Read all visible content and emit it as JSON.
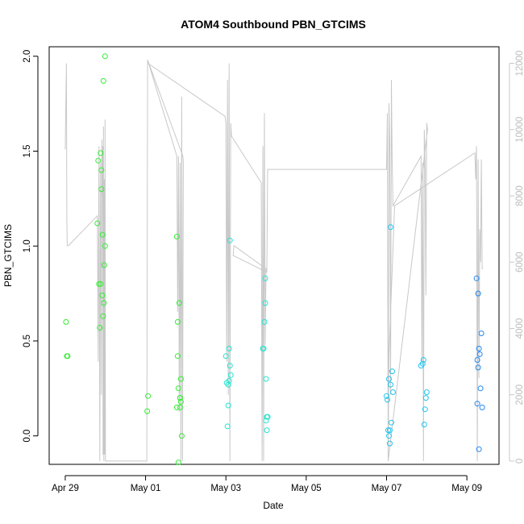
{
  "chart_data": {
    "type": "scatter",
    "title": "ATOM4 Southbound PBN_GTCIMS",
    "xlabel": "Date",
    "ylabel": "PBN_GTCIMS",
    "ylim": [
      -0.15,
      2.05
    ],
    "y_ticks": [
      "0.0",
      "0.5",
      "1.0",
      "1.5",
      "2.0"
    ],
    "x_ticks": [
      "Apr 29",
      "May 01",
      "May 03",
      "May 05",
      "May 07",
      "May 09"
    ],
    "xlim_days": [
      -0.4,
      10.8
    ],
    "right_axis": {
      "ylim": [
        -100,
        12500
      ],
      "ticks": [
        "0",
        "2000",
        "4000",
        "6000",
        "8000",
        "10000",
        "12000"
      ],
      "color": "#c8c8c8"
    },
    "grid": false,
    "legend": "none",
    "marker_colors": {
      "green": "#33ee33",
      "cyan": "#22e6d0",
      "lightblue": "#22c4ee",
      "blue": "#2288ee"
    },
    "points": [
      {
        "x": 0.02,
        "y": 0.6,
        "c": "green"
      },
      {
        "x": 0.04,
        "y": 0.42,
        "c": "green"
      },
      {
        "x": 0.06,
        "y": 0.42,
        "c": "green"
      },
      {
        "x": 0.8,
        "y": 1.12,
        "c": "green"
      },
      {
        "x": 0.82,
        "y": 1.45,
        "c": "green"
      },
      {
        "x": 0.84,
        "y": 0.8,
        "c": "green"
      },
      {
        "x": 0.86,
        "y": 0.57,
        "c": "green"
      },
      {
        "x": 0.88,
        "y": 1.49,
        "c": "green"
      },
      {
        "x": 0.88,
        "y": 0.8,
        "c": "green"
      },
      {
        "x": 0.9,
        "y": 1.4,
        "c": "green"
      },
      {
        "x": 0.9,
        "y": 1.3,
        "c": "green"
      },
      {
        "x": 0.92,
        "y": 0.74,
        "c": "green"
      },
      {
        "x": 0.93,
        "y": 1.06,
        "c": "green"
      },
      {
        "x": 0.94,
        "y": 0.63,
        "c": "green"
      },
      {
        "x": 0.95,
        "y": 1.87,
        "c": "green"
      },
      {
        "x": 0.96,
        "y": 0.7,
        "c": "green"
      },
      {
        "x": 0.97,
        "y": 0.9,
        "c": "green"
      },
      {
        "x": 0.99,
        "y": 2.0,
        "c": "green"
      },
      {
        "x": 0.99,
        "y": 1.0,
        "c": "green"
      },
      {
        "x": 2.06,
        "y": 0.21,
        "c": "green"
      },
      {
        "x": 2.04,
        "y": 0.13,
        "c": "green"
      },
      {
        "x": 2.78,
        "y": 1.05,
        "c": "green"
      },
      {
        "x": 2.8,
        "y": 0.6,
        "c": "green"
      },
      {
        "x": 2.8,
        "y": 0.42,
        "c": "green"
      },
      {
        "x": 2.78,
        "y": 0.15,
        "c": "green"
      },
      {
        "x": 2.82,
        "y": 0.25,
        "c": "green"
      },
      {
        "x": 2.86,
        "y": 0.2,
        "c": "green"
      },
      {
        "x": 2.84,
        "y": 0.7,
        "c": "green"
      },
      {
        "x": 2.88,
        "y": 0.3,
        "c": "green"
      },
      {
        "x": 2.86,
        "y": 0.15,
        "c": "green"
      },
      {
        "x": 2.88,
        "y": 0.18,
        "c": "green"
      },
      {
        "x": 2.9,
        "y": 0.0,
        "c": "green"
      },
      {
        "x": 2.82,
        "y": -0.14,
        "c": "green"
      },
      {
        "x": 2.86,
        "y": 0.2,
        "c": "green"
      },
      {
        "x": 4.0,
        "y": 0.42,
        "c": "cyan"
      },
      {
        "x": 4.02,
        "y": 0.28,
        "c": "cyan"
      },
      {
        "x": 4.04,
        "y": 0.05,
        "c": "cyan"
      },
      {
        "x": 4.06,
        "y": 0.16,
        "c": "cyan"
      },
      {
        "x": 4.06,
        "y": 0.27,
        "c": "cyan"
      },
      {
        "x": 4.08,
        "y": 0.29,
        "c": "cyan"
      },
      {
        "x": 4.08,
        "y": 0.46,
        "c": "cyan"
      },
      {
        "x": 4.1,
        "y": 0.37,
        "c": "cyan"
      },
      {
        "x": 4.12,
        "y": 0.32,
        "c": "cyan"
      },
      {
        "x": 4.1,
        "y": 1.03,
        "c": "cyan"
      },
      {
        "x": 4.92,
        "y": 0.46,
        "c": "cyan"
      },
      {
        "x": 4.94,
        "y": 0.46,
        "c": "cyan"
      },
      {
        "x": 4.96,
        "y": 0.6,
        "c": "cyan"
      },
      {
        "x": 4.98,
        "y": 0.83,
        "c": "cyan"
      },
      {
        "x": 4.98,
        "y": 0.7,
        "c": "cyan"
      },
      {
        "x": 5.0,
        "y": 0.3,
        "c": "cyan"
      },
      {
        "x": 5.0,
        "y": 0.08,
        "c": "cyan"
      },
      {
        "x": 5.02,
        "y": 0.1,
        "c": "cyan"
      },
      {
        "x": 5.04,
        "y": 0.1,
        "c": "cyan"
      },
      {
        "x": 5.02,
        "y": 0.03,
        "c": "cyan"
      },
      {
        "x": 8.0,
        "y": 0.21,
        "c": "lightblue"
      },
      {
        "x": 8.02,
        "y": 0.19,
        "c": "lightblue"
      },
      {
        "x": 8.04,
        "y": 0.03,
        "c": "lightblue"
      },
      {
        "x": 8.06,
        "y": 0.0,
        "c": "lightblue"
      },
      {
        "x": 8.06,
        "y": 0.3,
        "c": "lightblue"
      },
      {
        "x": 8.08,
        "y": -0.04,
        "c": "lightblue"
      },
      {
        "x": 8.08,
        "y": 0.03,
        "c": "lightblue"
      },
      {
        "x": 8.1,
        "y": 0.27,
        "c": "lightblue"
      },
      {
        "x": 8.1,
        "y": 1.1,
        "c": "lightblue"
      },
      {
        "x": 8.12,
        "y": 0.07,
        "c": "lightblue"
      },
      {
        "x": 8.14,
        "y": 0.34,
        "c": "lightblue"
      },
      {
        "x": 8.16,
        "y": 0.23,
        "c": "lightblue"
      },
      {
        "x": 8.86,
        "y": 0.37,
        "c": "lightblue"
      },
      {
        "x": 8.9,
        "y": 0.38,
        "c": "lightblue"
      },
      {
        "x": 8.92,
        "y": 0.4,
        "c": "lightblue"
      },
      {
        "x": 8.94,
        "y": 0.06,
        "c": "lightblue"
      },
      {
        "x": 8.96,
        "y": 0.14,
        "c": "lightblue"
      },
      {
        "x": 8.98,
        "y": 0.2,
        "c": "lightblue"
      },
      {
        "x": 9.0,
        "y": 0.23,
        "c": "lightblue"
      },
      {
        "x": 10.24,
        "y": 0.83,
        "c": "blue"
      },
      {
        "x": 10.26,
        "y": 0.17,
        "c": "blue"
      },
      {
        "x": 10.26,
        "y": 0.4,
        "c": "blue"
      },
      {
        "x": 10.28,
        "y": 0.36,
        "c": "blue"
      },
      {
        "x": 10.28,
        "y": 0.75,
        "c": "blue"
      },
      {
        "x": 10.3,
        "y": 0.46,
        "c": "blue"
      },
      {
        "x": 10.32,
        "y": 0.43,
        "c": "blue"
      },
      {
        "x": 10.3,
        "y": -0.07,
        "c": "blue"
      },
      {
        "x": 10.34,
        "y": 0.25,
        "c": "blue"
      },
      {
        "x": 10.36,
        "y": 0.54,
        "c": "blue"
      },
      {
        "x": 10.38,
        "y": 0.15,
        "c": "blue"
      }
    ],
    "secondary_line": {
      "name": "",
      "x": [
        0.0,
        0.03,
        0.04,
        0.05,
        0.08,
        0.8,
        0.82,
        0.84,
        0.86,
        0.88,
        0.9,
        0.91,
        0.92,
        0.93,
        0.94,
        0.95,
        0.96,
        0.97,
        0.98,
        0.99,
        1.0,
        2.03,
        2.05,
        2.78,
        2.8,
        2.82,
        2.84,
        2.86,
        2.88,
        2.9,
        2.92,
        2.94,
        2.93,
        2.05,
        2.06,
        3.98,
        4.0,
        4.02,
        4.04,
        4.06,
        4.08,
        4.1,
        4.12,
        4.14,
        4.88,
        4.9,
        4.92,
        4.94,
        4.96,
        4.98,
        5.0,
        4.2,
        4.18,
        5.02,
        5.04,
        8.0,
        8.02,
        8.04,
        8.06,
        8.08,
        8.1,
        8.12,
        8.14,
        8.16,
        8.86,
        8.88,
        8.9,
        8.92,
        8.94,
        8.96,
        8.98,
        9.0,
        9.02,
        8.04,
        8.06,
        8.2,
        10.2,
        10.22,
        10.24,
        10.26,
        10.28,
        10.3,
        10.32,
        10.34,
        10.36,
        10.38,
        10.4
      ],
      "y": [
        9400,
        12000,
        7300,
        6500,
        6500,
        7400,
        3000,
        9500,
        0,
        9000,
        2000,
        9700,
        8000,
        9500,
        200,
        10100,
        0,
        8500,
        200,
        10300,
        0,
        0,
        12100,
        9200,
        4500,
        9200,
        1500,
        9000,
        0,
        11000,
        0,
        9000,
        9200,
        12100,
        12000,
        10400,
        10200,
        3000,
        11500,
        2000,
        12000,
        0,
        10200,
        9800,
        8400,
        0,
        9500,
        0,
        10500,
        3500,
        5800,
        6500,
        6200,
        5700,
        8800,
        8800,
        10500,
        0,
        10800,
        9500,
        2000,
        11500,
        9000,
        7700,
        9200,
        3000,
        9000,
        0,
        10000,
        9000,
        5000,
        10200,
        10000,
        0,
        3200,
        7700,
        9300,
        8500,
        9500,
        0,
        9100,
        2500,
        7000,
        6000,
        9100,
        5800,
        5800
      ]
    }
  }
}
